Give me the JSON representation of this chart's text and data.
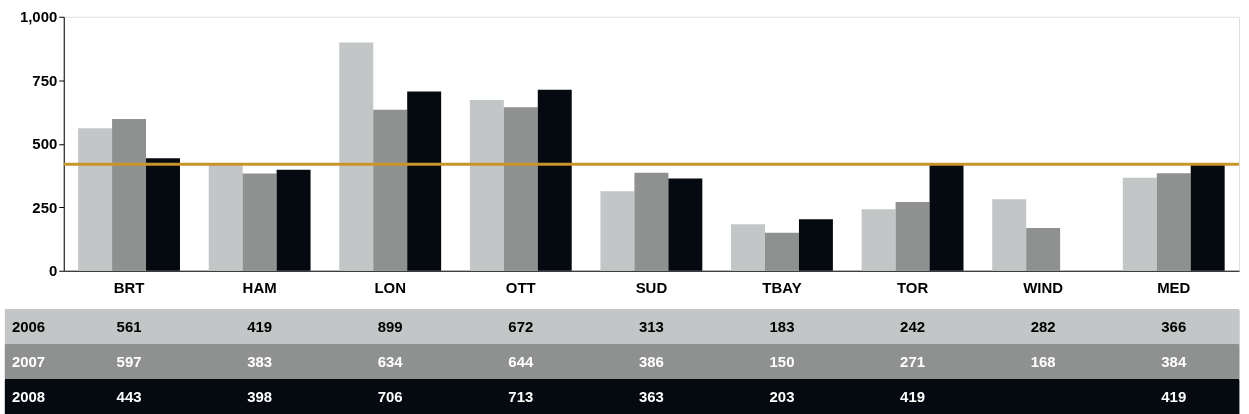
{
  "chart_data": {
    "type": "bar",
    "categories": [
      "BRT",
      "HAM",
      "LON",
      "OTT",
      "SUD",
      "TBAY",
      "TOR",
      "WIND",
      "MED"
    ],
    "series": [
      {
        "name": "2006",
        "color": "#c3c6c6",
        "values": [
          561,
          419,
          899,
          672,
          313,
          183,
          242,
          282,
          366
        ]
      },
      {
        "name": "2007",
        "color": "#8f9191",
        "values": [
          597,
          383,
          634,
          644,
          386,
          150,
          271,
          168,
          384
        ]
      },
      {
        "name": "2008",
        "color": "#050a10",
        "values": [
          443,
          398,
          706,
          713,
          363,
          203,
          419,
          null,
          419
        ]
      }
    ],
    "ylim": [
      0,
      1000
    ],
    "yticks": [
      0,
      250,
      500,
      750,
      {
        "value": 1000,
        "label": "1,000"
      }
    ],
    "ref_lines": [
      {
        "axis": "y",
        "value": 419,
        "color": "#c8952a"
      }
    ],
    "data_labels": true,
    "grid": false,
    "legend": false
  }
}
